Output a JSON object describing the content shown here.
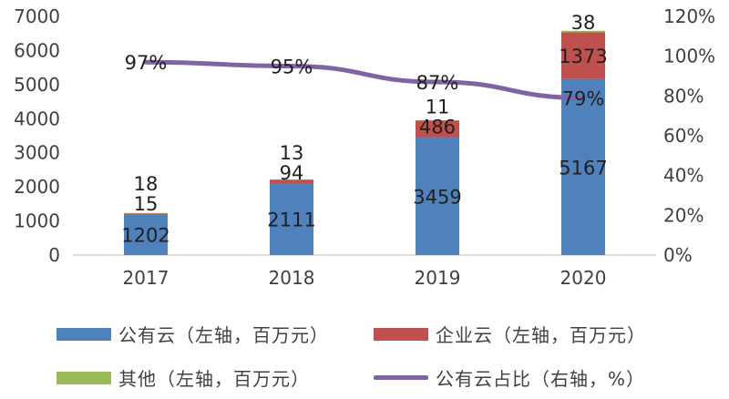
{
  "chart_data": {
    "type": "bar",
    "stacked": true,
    "categories": [
      "2017",
      "2018",
      "2019",
      "2020"
    ],
    "series": [
      {
        "name": "公有云（左轴，百万元）",
        "axis": "left",
        "color": "#4f81bd",
        "values": [
          1202,
          2111,
          3459,
          5167
        ],
        "labels": [
          "1202",
          "2111",
          "3459",
          "5167"
        ]
      },
      {
        "name": "企业云（左轴，百万元）",
        "axis": "left",
        "color": "#c0504d",
        "values": [
          15,
          94,
          486,
          1373
        ],
        "labels": [
          "15",
          "94",
          "486",
          "1373"
        ]
      },
      {
        "name": "其他（左轴，百万元）",
        "axis": "left",
        "color": "#9bbb59",
        "values": [
          18,
          13,
          11,
          38
        ],
        "labels": [
          "18",
          "13",
          "11",
          "38"
        ]
      }
    ],
    "line_series": {
      "name": "公有云占比（右轴，%）",
      "axis": "right",
      "color": "#8064a2",
      "values": [
        97,
        95,
        87,
        79
      ],
      "labels": [
        "97%",
        "95%",
        "87%",
        "79%"
      ]
    },
    "y_left": {
      "min": 0,
      "max": 7000,
      "ticks": [
        "0",
        "1000",
        "2000",
        "3000",
        "4000",
        "5000",
        "6000",
        "7000"
      ]
    },
    "y_right": {
      "min": 0,
      "max": 120,
      "ticks": [
        "0%",
        "20%",
        "40%",
        "60%",
        "80%",
        "100%",
        "120%"
      ]
    },
    "grid": false,
    "legend_position": "bottom"
  },
  "legend": [
    {
      "label": "公有云（左轴，百万元）",
      "color": "#4f81bd",
      "kind": "bar"
    },
    {
      "label": "企业云（左轴，百万元）",
      "color": "#c0504d",
      "kind": "bar"
    },
    {
      "label": "其他（左轴，百万元）",
      "color": "#9bbb59",
      "kind": "bar"
    },
    {
      "label": "公有云占比（右轴，%）",
      "color": "#8064a2",
      "kind": "line"
    }
  ]
}
